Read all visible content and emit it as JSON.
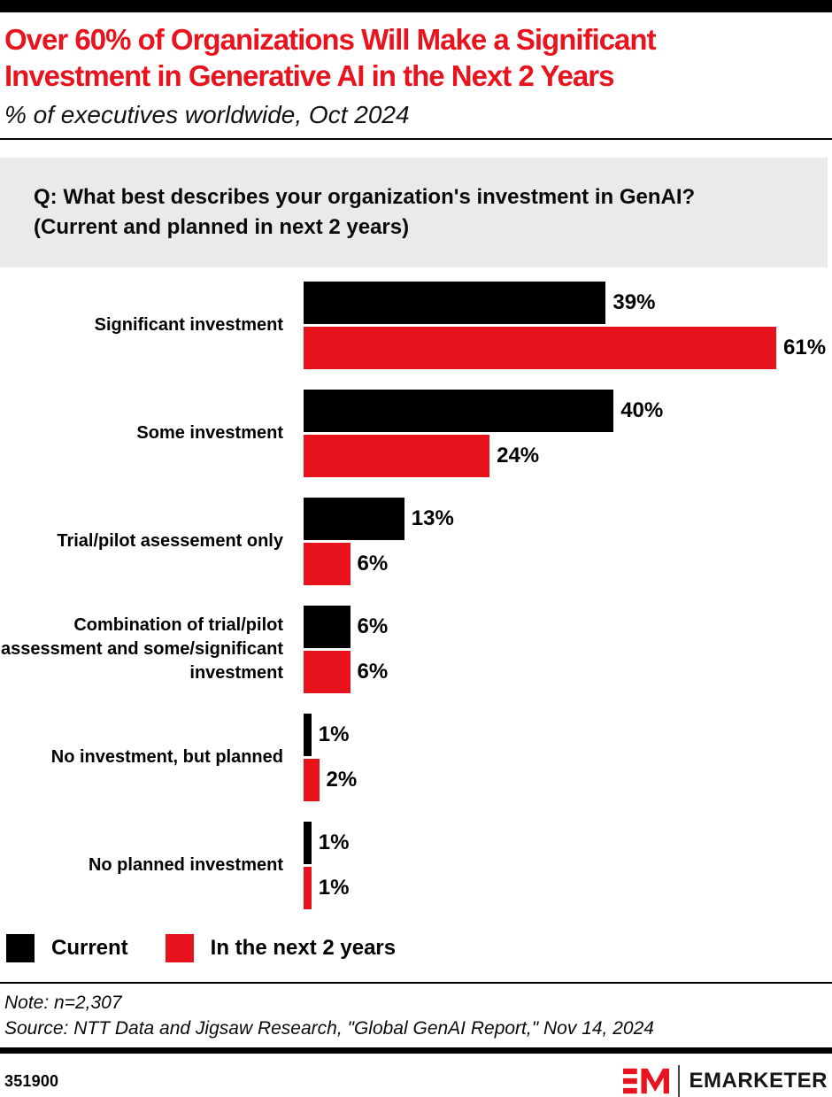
{
  "page": {
    "title_lines": [
      "Over 60% of Organizations Will Make a Significant",
      "Investment in Generative AI in the Next 2 Years"
    ],
    "subtitle": "% of executives worldwide, Oct 2024"
  },
  "question": {
    "lines": [
      "Q: What best describes your organization's investment in GenAI?",
      "(Current and planned in next 2 years)"
    ]
  },
  "chart_data": {
    "type": "bar",
    "orientation": "horizontal",
    "title": "Over 60% of Organizations Will Make a Significant Investment in Generative AI in the Next 2 Years",
    "subtitle": "% of executives worldwide, Oct 2024",
    "value_suffix": "%",
    "xmax": 61,
    "grid": false,
    "legend_position": "bottom",
    "categories": [
      "Significant investment",
      "Some investment",
      "Trial/pilot asessement only",
      "Combination of trial/pilot assessment and some/significant investment",
      "No investment, but planned",
      "No planned investment"
    ],
    "series": [
      {
        "name": "Current",
        "color": "#000000",
        "values": [
          39,
          40,
          13,
          6,
          1,
          1
        ]
      },
      {
        "name": "In the next 2 years",
        "color": "#e8131d",
        "values": [
          61,
          24,
          6,
          6,
          2,
          1
        ]
      }
    ]
  },
  "legend": {
    "items": [
      {
        "label": "Current",
        "color": "#000000"
      },
      {
        "label": "In the next 2 years",
        "color": "#e8131d"
      }
    ]
  },
  "footer": {
    "note": "Note: n=2,307",
    "source": "Source: NTT Data and Jigsaw Research, \"Global GenAI Report,\" Nov 14, 2024",
    "chart_id": "351900",
    "brand_wordmark": "EMARKETER"
  },
  "colors": {
    "brand_red": "#e8131d",
    "black": "#000000",
    "question_bg": "#eaeaea"
  }
}
